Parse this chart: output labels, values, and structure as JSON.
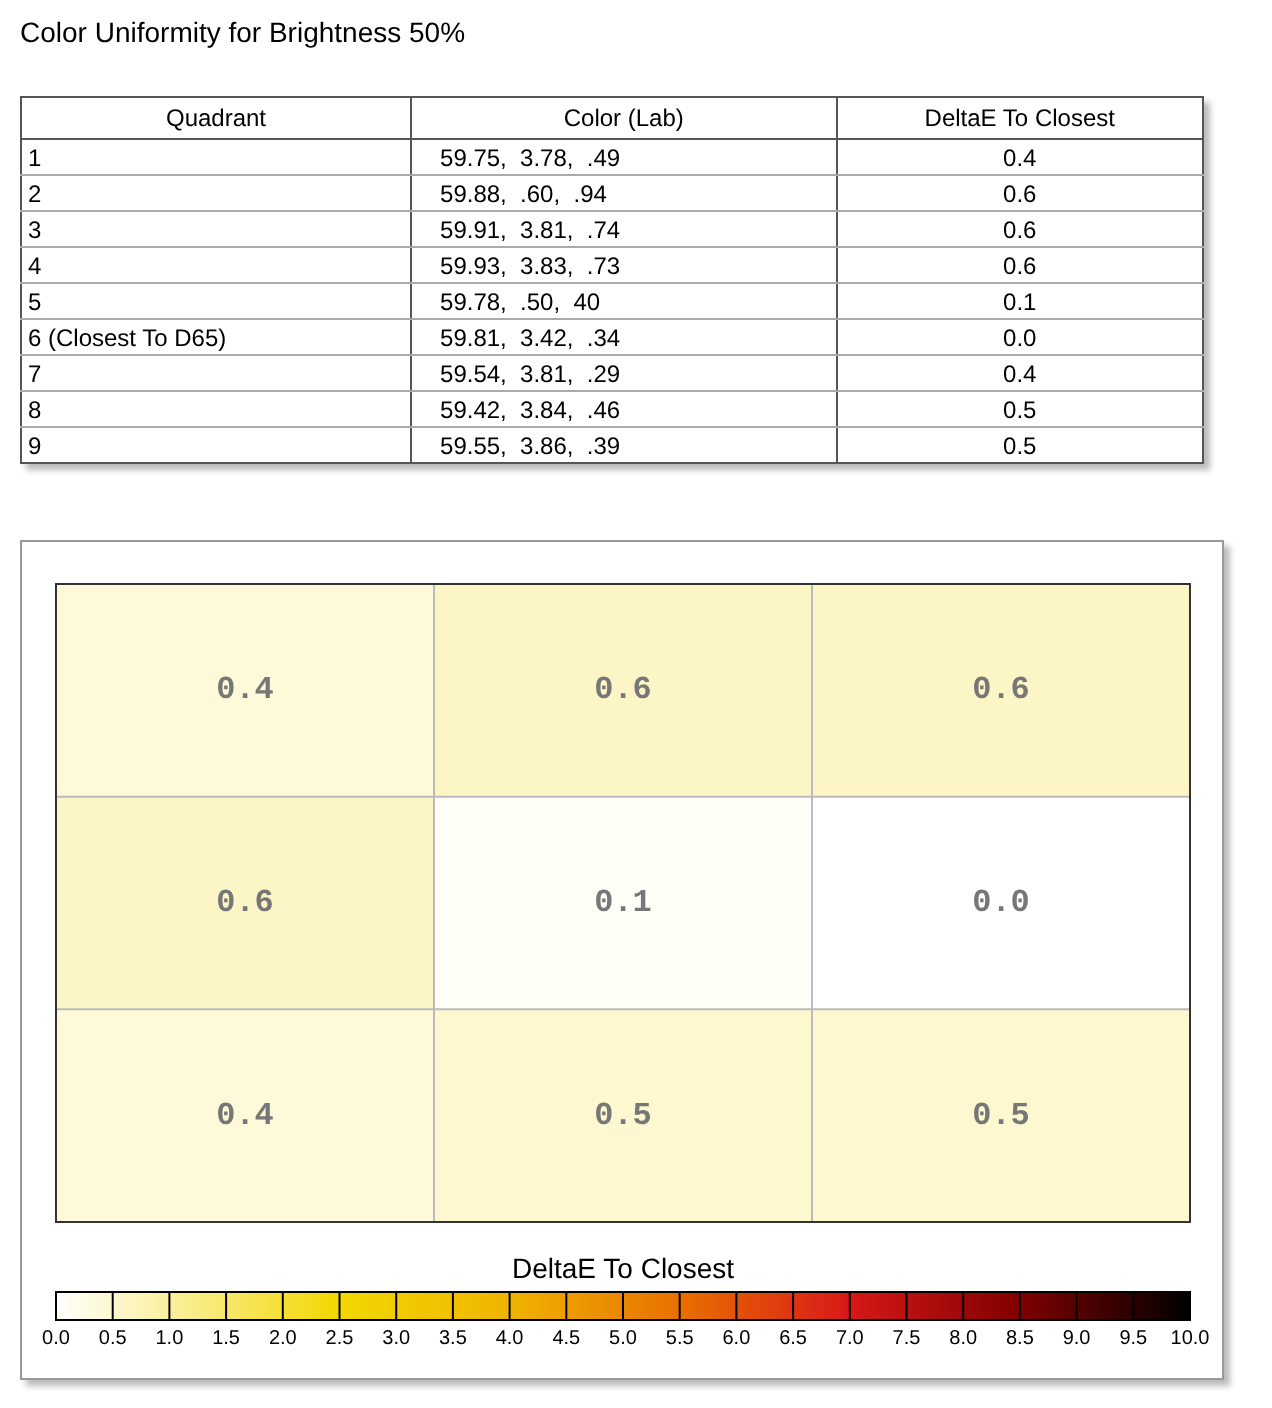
{
  "chart_data": [
    {
      "type": "other",
      "title": "Color Uniformity for Brightness 50%",
      "annotations": [
        "Quadrant",
        "Color (Lab)",
        "DeltaE To Closest",
        "1",
        "59.75,  3.78,  .49",
        "0.4",
        "2",
        "59.88,  .60,  .94",
        "0.6",
        "3",
        "59.91,  3.81,  .74",
        "0.6",
        "4",
        "59.93,  3.83,  .73",
        "0.6",
        "5",
        "59.78,  .50,  40",
        "0.1",
        "6 (Closest To D65)",
        "59.81,  3.42,  .34",
        "0.0",
        "7",
        "59.54,  3.81,  .29",
        "0.4",
        "8",
        "59.42,  3.84,  .46",
        "0.5",
        "9",
        "59.55,  3.86,  .39",
        "0.5"
      ]
    },
    {
      "type": "heatmap",
      "categories": [
        null,
        null,
        null
      ],
      "y_categories": [
        null,
        null,
        null
      ],
      "cells": [
        [
          0.4,
          0.6,
          0.6
        ],
        [
          0.6,
          0.1,
          0.0
        ],
        [
          0.4,
          0.5,
          0.5
        ]
      ],
      "cell_labels": [
        [
          "0.4",
          "0.6",
          "0.6"
        ],
        [
          "0.6",
          "0.1",
          "0.0"
        ],
        [
          "0.4",
          "0.5",
          "0.5"
        ]
      ],
      "data_labels": true,
      "grid": true,
      "clabel": "DeltaE To Closest",
      "clim": [
        0,
        10
      ],
      "cticks": [
        {
          "value": 0,
          "label": "0.0"
        },
        {
          "value": 0.5,
          "label": "0.5"
        },
        {
          "value": 1,
          "label": "1.0"
        },
        {
          "value": 1.5,
          "label": "1.5"
        },
        {
          "value": 2,
          "label": "2.0"
        },
        {
          "value": 2.5,
          "label": "2.5"
        },
        {
          "value": 3,
          "label": "3.0"
        },
        {
          "value": 3.5,
          "label": "3.5"
        },
        {
          "value": 4,
          "label": "4.0"
        },
        {
          "value": 4.5,
          "label": "4.5"
        },
        {
          "value": 5,
          "label": "5.0"
        },
        {
          "value": 5.5,
          "label": "5.5"
        },
        {
          "value": 6,
          "label": "6.0"
        },
        {
          "value": 6.5,
          "label": "6.5"
        },
        {
          "value": 7,
          "label": "7.0"
        },
        {
          "value": 7.5,
          "label": "7.5"
        },
        {
          "value": 8,
          "label": "8.0"
        },
        {
          "value": 8.5,
          "label": "8.5"
        },
        {
          "value": 9,
          "label": "9.0"
        },
        {
          "value": 9.5,
          "label": "9.5"
        },
        {
          "value": 10,
          "label": "10.0"
        }
      ]
    }
  ]
}
